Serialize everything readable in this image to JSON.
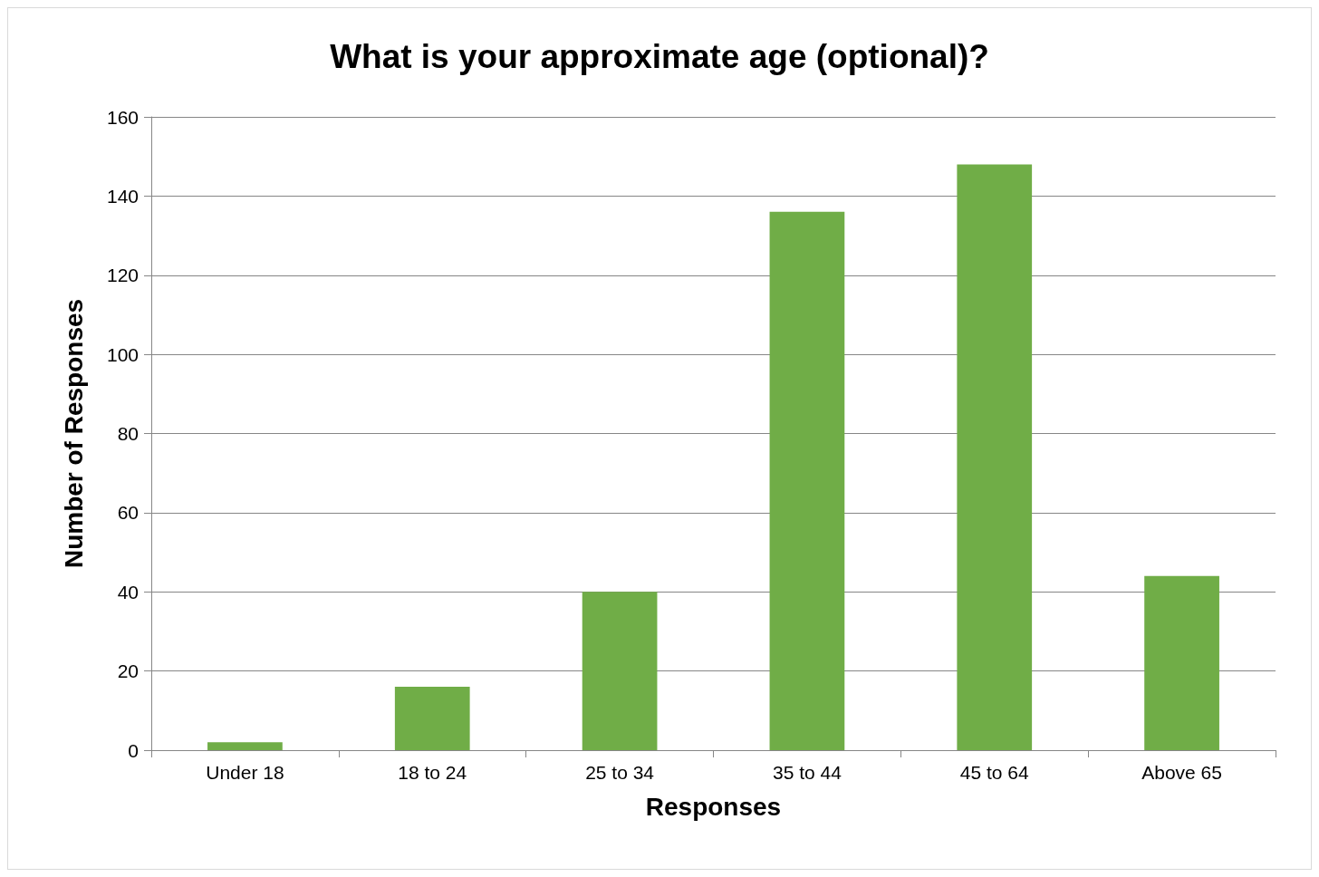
{
  "chart_data": {
    "type": "bar",
    "title": "What is your approximate age (optional)?",
    "xlabel": "Responses",
    "ylabel": "Number of Responses",
    "categories": [
      "Under 18",
      "18 to 24",
      "25 to 34",
      "35 to 44",
      "45 to 64",
      "Above 65"
    ],
    "values": [
      2,
      16,
      40,
      136,
      148,
      44
    ],
    "color": "#70ad47",
    "ylim": [
      0,
      160
    ],
    "yticks": [
      0,
      20,
      40,
      60,
      80,
      100,
      120,
      140,
      160
    ],
    "grid": "y"
  }
}
